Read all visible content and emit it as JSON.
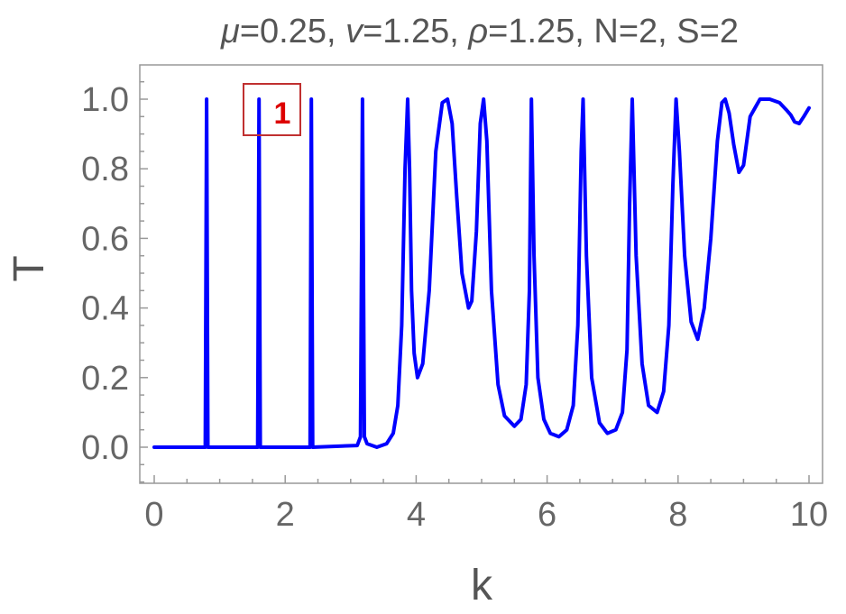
{
  "chart_data": {
    "type": "line",
    "title_parts": [
      {
        "text": "μ",
        "italic": true
      },
      {
        "text": "=0.25, ",
        "italic": false
      },
      {
        "text": "v",
        "italic": true
      },
      {
        "text": "=1.25, ",
        "italic": false
      },
      {
        "text": "ρ",
        "italic": true
      },
      {
        "text": "=1.25, N=2, S=2",
        "italic": false
      }
    ],
    "xlabel": "k",
    "ylabel": "T",
    "xlim": [
      0,
      10
    ],
    "ylim": [
      -0.1,
      1.1
    ],
    "xticks": [
      "0",
      "2",
      "4",
      "6",
      "8",
      "10"
    ],
    "yticks": [
      "0.0",
      "0.2",
      "0.4",
      "0.6",
      "0.8",
      "1.0"
    ],
    "grid": false,
    "series": [
      {
        "color": "#0000ff",
        "x": [
          0,
          0.78,
          0.8,
          0.82,
          1.58,
          1.6,
          1.62,
          2.38,
          2.4,
          2.42,
          3.1,
          3.15,
          3.18,
          3.21,
          3.25,
          3.4,
          3.55,
          3.65,
          3.72,
          3.78,
          3.83,
          3.87,
          3.9,
          3.93,
          3.97,
          4.02,
          4.1,
          4.2,
          4.3,
          4.4,
          4.48,
          4.55,
          4.62,
          4.7,
          4.8,
          4.85,
          4.92,
          4.98,
          5.03,
          5.08,
          5.15,
          5.25,
          5.35,
          5.5,
          5.6,
          5.68,
          5.73,
          5.76,
          5.8,
          5.86,
          5.95,
          6.05,
          6.18,
          6.3,
          6.4,
          6.47,
          6.52,
          6.55,
          6.6,
          6.68,
          6.8,
          6.92,
          7.05,
          7.15,
          7.22,
          7.26,
          7.3,
          7.36,
          7.45,
          7.55,
          7.68,
          7.78,
          7.86,
          7.92,
          7.97,
          8.02,
          8.1,
          8.2,
          8.3,
          8.4,
          8.5,
          8.6,
          8.67,
          8.72,
          8.78,
          8.85,
          8.93,
          9.0,
          9.1,
          9.25,
          9.4,
          9.55,
          9.65,
          9.72,
          9.78,
          9.85,
          9.92,
          10.0
        ],
        "y": [
          0,
          0,
          1.0,
          0,
          0,
          1.0,
          0,
          0,
          1.0,
          0,
          0.005,
          0.03,
          1.0,
          0.03,
          0.01,
          0.0,
          0.01,
          0.04,
          0.12,
          0.35,
          0.8,
          1.0,
          0.8,
          0.45,
          0.27,
          0.2,
          0.24,
          0.45,
          0.85,
          0.99,
          1.0,
          0.93,
          0.72,
          0.5,
          0.4,
          0.42,
          0.62,
          0.93,
          1.0,
          0.88,
          0.45,
          0.18,
          0.09,
          0.06,
          0.08,
          0.18,
          0.45,
          1.0,
          0.55,
          0.2,
          0.08,
          0.04,
          0.03,
          0.05,
          0.12,
          0.35,
          0.85,
          1.0,
          0.55,
          0.2,
          0.07,
          0.04,
          0.05,
          0.1,
          0.28,
          0.7,
          1.0,
          0.55,
          0.24,
          0.12,
          0.1,
          0.16,
          0.35,
          0.75,
          1.0,
          0.85,
          0.55,
          0.36,
          0.31,
          0.4,
          0.6,
          0.88,
          0.99,
          1.0,
          0.96,
          0.87,
          0.79,
          0.81,
          0.95,
          1.0,
          1.0,
          0.99,
          0.97,
          0.955,
          0.935,
          0.93,
          0.95,
          0.975
        ]
      }
    ]
  },
  "annotation": {
    "label": "1",
    "border_color": "#c03030",
    "text_color": "#dd0000"
  }
}
